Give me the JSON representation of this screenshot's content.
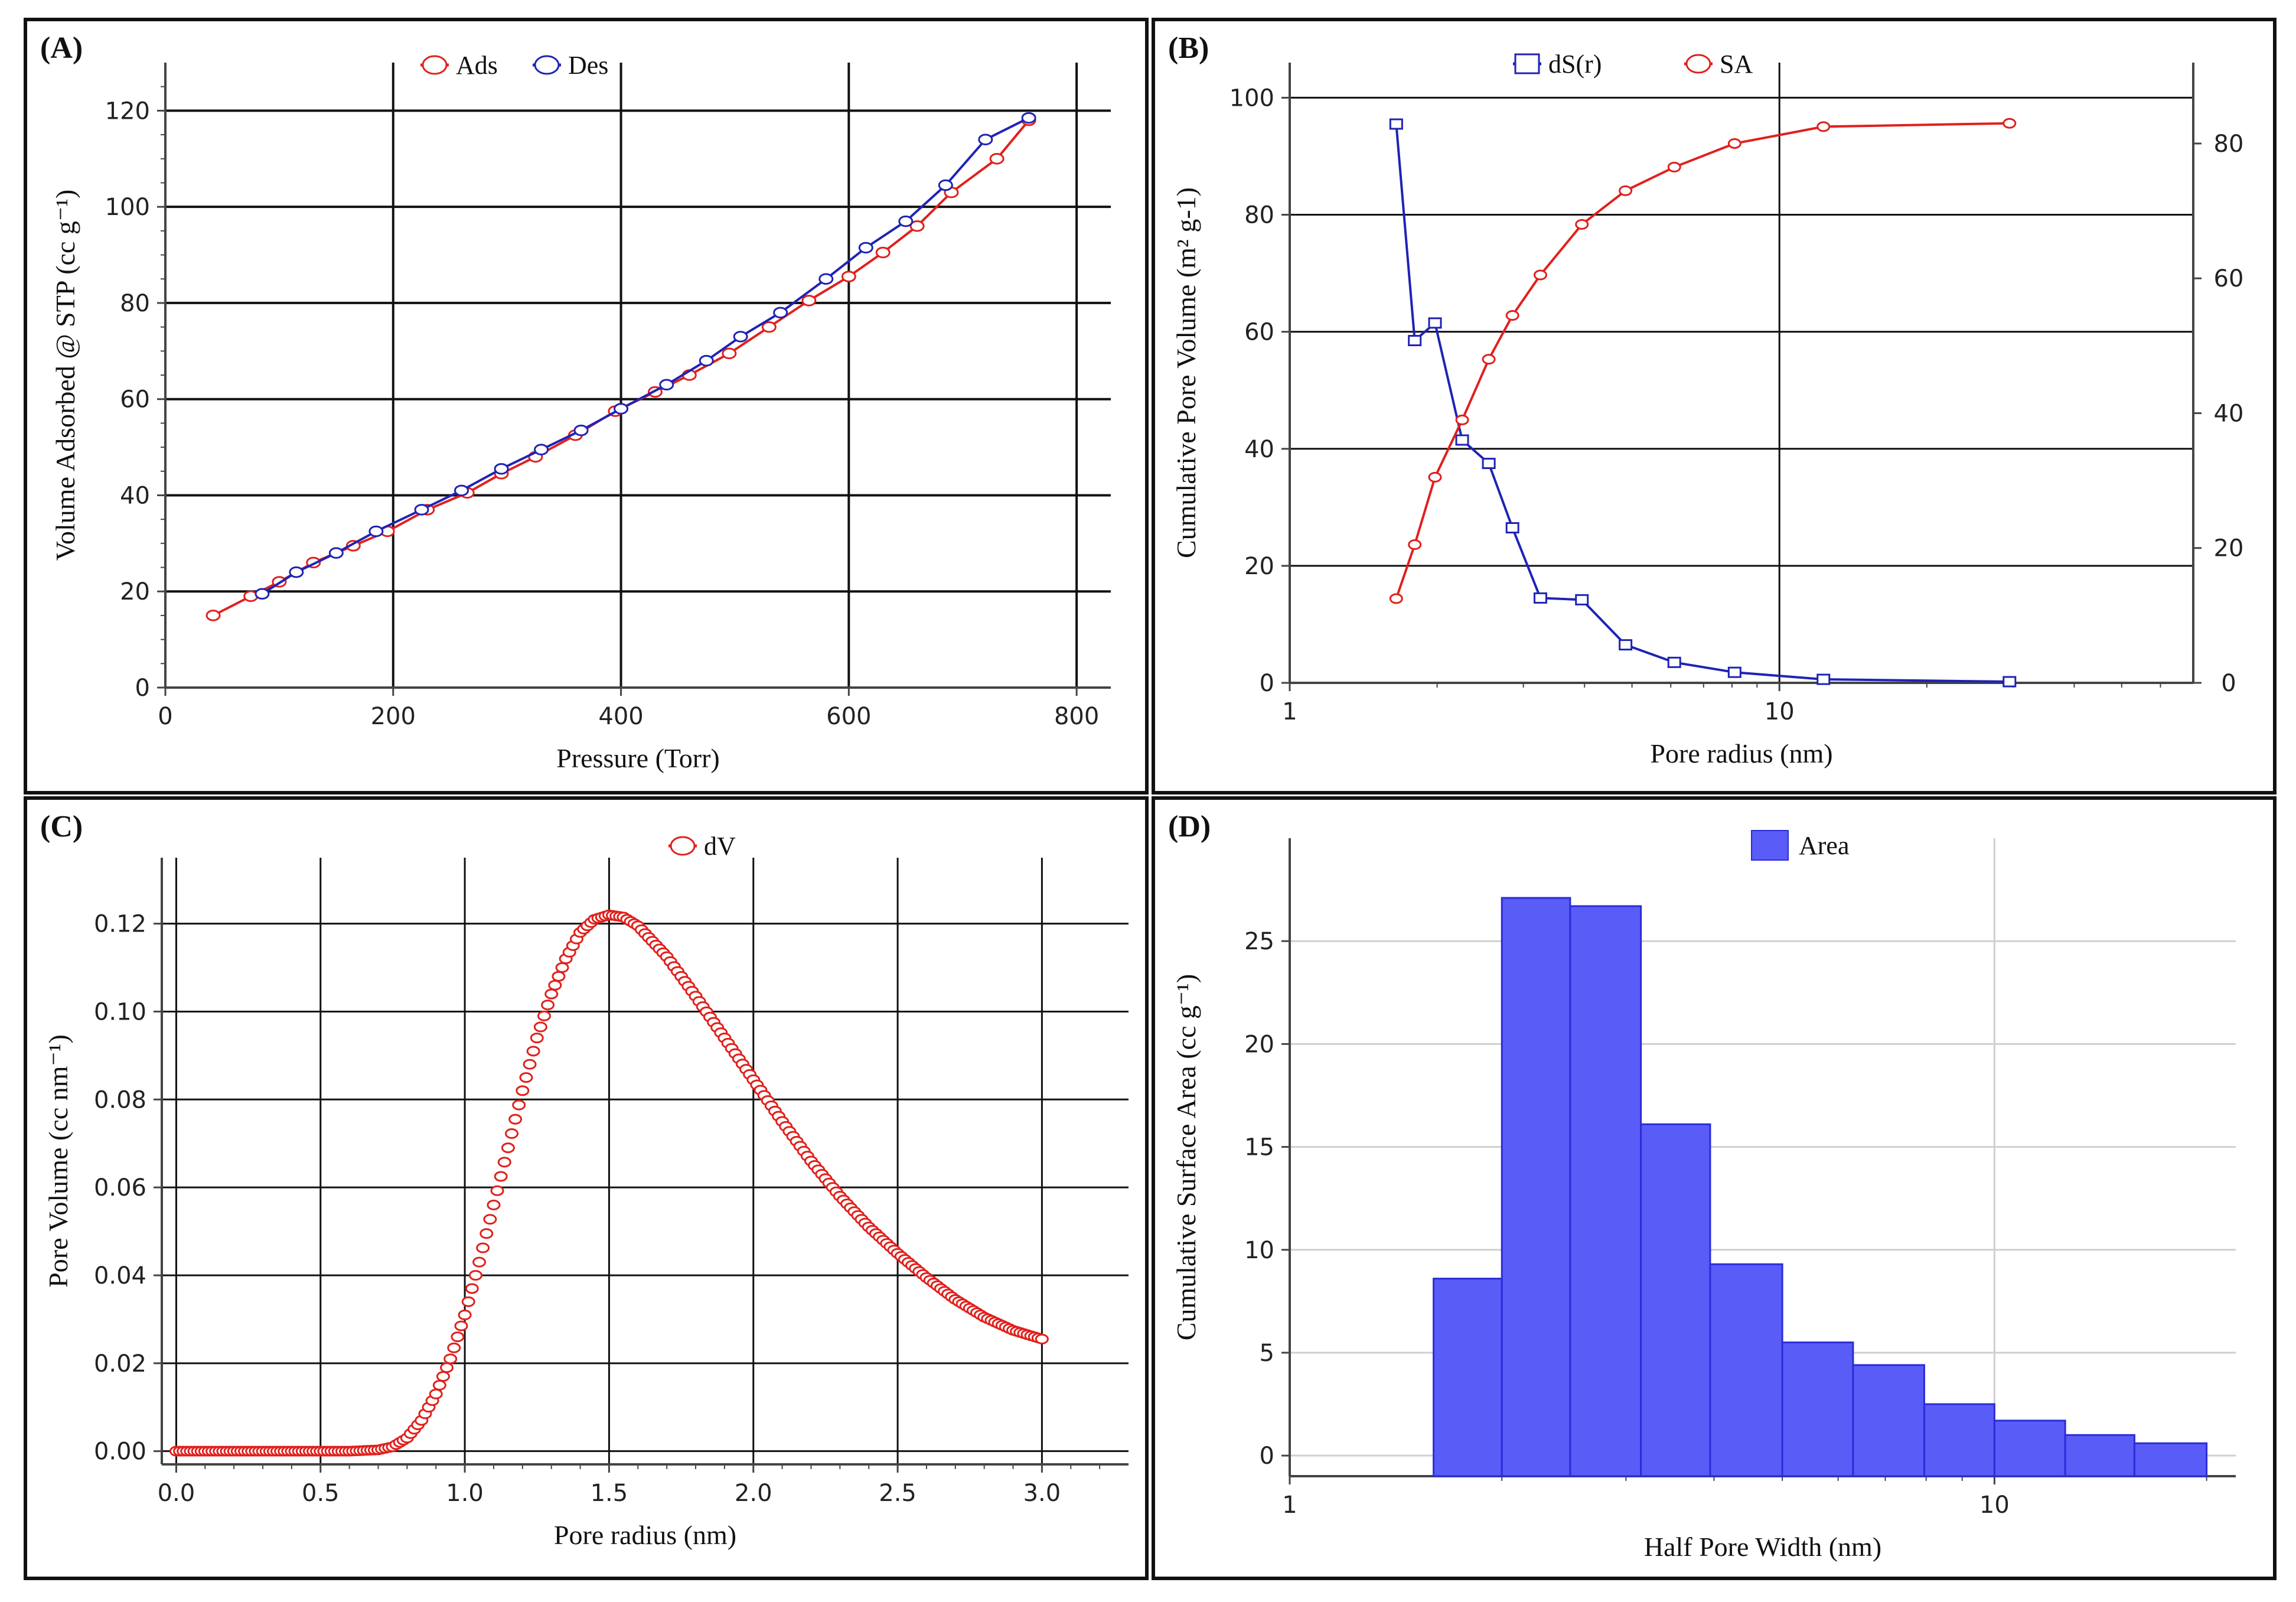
{
  "panels": {
    "a": {
      "label": "(A)",
      "chart_data": {
        "type": "line",
        "xlabel": "Pressure (Torr)",
        "ylabel": "Volume Adsorbed @ STP (cc g⁻¹)",
        "xlim": [
          0,
          830
        ],
        "ylim": [
          0,
          130
        ],
        "xticks": [
          0,
          200,
          400,
          600,
          800
        ],
        "yticks": [
          0,
          20,
          40,
          60,
          80,
          100,
          120
        ],
        "grid": true,
        "legend": "top-center",
        "series": [
          {
            "name": "Ads",
            "color": "#e0201c",
            "marker": "circle",
            "x": [
              42,
              75,
              100,
              130,
              165,
              195,
              230,
              265,
              295,
              325,
              360,
              395,
              430,
              460,
              495,
              530,
              565,
              600,
              630,
              660,
              690,
              730,
              758
            ],
            "y": [
              15,
              19,
              22,
              26,
              29.5,
              32.5,
              37,
              40.5,
              44.5,
              48,
              52.5,
              57.5,
              61.5,
              65,
              69.5,
              75,
              80.5,
              85.5,
              90.5,
              96,
              103,
              110,
              118
            ]
          },
          {
            "name": "Des",
            "color": "#1f23b5",
            "marker": "circle",
            "x": [
              85,
              115,
              150,
              185,
              225,
              260,
              295,
              330,
              365,
              400,
              440,
              475,
              505,
              540,
              580,
              615,
              650,
              685,
              720,
              758
            ],
            "y": [
              19.5,
              24,
              28,
              32.5,
              37,
              41,
              45.5,
              49.5,
              53.5,
              58,
              63,
              68,
              73,
              78,
              85,
              91.5,
              97,
              104.5,
              114,
              118.5
            ]
          }
        ]
      }
    },
    "b": {
      "label": "(B)",
      "chart_data": {
        "type": "line",
        "xlabel": "Pore radius (nm)",
        "ylabel": "Cumulative Pore Volume (m² g-1)",
        "xscale": "log",
        "xlim": [
          1,
          70
        ],
        "ylim": [
          0,
          106
        ],
        "y2lim": [
          0,
          92
        ],
        "xticks": [
          1,
          10
        ],
        "yticks": [
          0,
          20,
          40,
          60,
          80,
          100
        ],
        "y2ticks": [
          0,
          20,
          40,
          60,
          80
        ],
        "grid": true,
        "legend": "top-center",
        "series": [
          {
            "name": "dS(r)",
            "color": "#1f23b5",
            "marker": "square",
            "axis": "left",
            "x": [
              1.65,
              1.8,
              1.98,
              2.25,
              2.55,
              2.85,
              3.25,
              3.95,
              4.85,
              6.1,
              8.1,
              12.3,
              29.5
            ],
            "y": [
              95.5,
              58.5,
              61.5,
              41.5,
              37.5,
              26.5,
              14.5,
              14.2,
              6.5,
              3.5,
              1.8,
              0.6,
              0.2
            ]
          },
          {
            "name": "SA",
            "color": "#e0201c",
            "marker": "circle",
            "axis": "right",
            "x": [
              1.65,
              1.8,
              1.98,
              2.25,
              2.55,
              2.85,
              3.25,
              3.95,
              4.85,
              6.1,
              8.1,
              12.3,
              29.5
            ],
            "y": [
              12.5,
              20.5,
              30.5,
              39,
              48,
              54.5,
              60.5,
              68,
              73,
              76.5,
              80,
              82.5,
              83
            ]
          }
        ]
      }
    },
    "c": {
      "label": "(C)",
      "chart_data": {
        "type": "scatter",
        "xlabel": "Pore radius (nm)",
        "ylabel": "Pore Volume (cc nm⁻¹)",
        "xlim": [
          -0.05,
          3.3
        ],
        "ylim": [
          -0.003,
          0.135
        ],
        "xticks": [
          0.0,
          0.5,
          1.0,
          1.5,
          2.0,
          2.5,
          3.0
        ],
        "yticks": [
          0.0,
          0.02,
          0.04,
          0.06,
          0.08,
          0.1,
          0.12
        ],
        "grid": true,
        "legend": "top-center",
        "curve": "lognormal-like peak",
        "peak": {
          "x": 1.52,
          "y": 0.122
        },
        "series": [
          {
            "name": "dV",
            "color": "#e0201c",
            "marker": "circle",
            "x": [
              0.0,
              0.2,
              0.4,
              0.6,
              0.7,
              0.75,
              0.8,
              0.85,
              0.9,
              0.95,
              1.0,
              1.05,
              1.1,
              1.15,
              1.2,
              1.25,
              1.3,
              1.35,
              1.4,
              1.45,
              1.5,
              1.55,
              1.6,
              1.7,
              1.8,
              1.9,
              2.0,
              2.1,
              2.2,
              2.3,
              2.4,
              2.5,
              2.6,
              2.7,
              2.8,
              2.9,
              3.0
            ],
            "y": [
              0.0,
              0.0,
              0.0,
              0.0,
              0.0003,
              0.001,
              0.003,
              0.007,
              0.013,
              0.021,
              0.031,
              0.043,
              0.056,
              0.069,
              0.082,
              0.094,
              0.104,
              0.112,
              0.118,
              0.121,
              0.122,
              0.1215,
              0.1195,
              0.1125,
              0.1035,
              0.094,
              0.0845,
              0.075,
              0.066,
              0.058,
              0.051,
              0.045,
              0.0395,
              0.0345,
              0.0305,
              0.0275,
              0.0255
            ]
          }
        ]
      }
    },
    "d": {
      "label": "(D)",
      "chart_data": {
        "type": "bar",
        "xlabel": "Half Pore Width (nm)",
        "ylabel": "Cumulative Surface Area (cc g⁻¹)",
        "xscale": "log",
        "xlim": [
          1,
          22
        ],
        "ylim": [
          -1,
          30
        ],
        "xticks": [
          1,
          10
        ],
        "yticks": [
          0,
          5,
          10,
          15,
          20,
          25
        ],
        "grid": true,
        "legend": "top-center",
        "color": "#5a5cf7",
        "bins": [
          {
            "from": 1.6,
            "to": 2.0,
            "value": 8.6
          },
          {
            "from": 2.0,
            "to": 2.5,
            "value": 27.1
          },
          {
            "from": 2.5,
            "to": 3.15,
            "value": 26.7
          },
          {
            "from": 3.15,
            "to": 3.95,
            "value": 16.1
          },
          {
            "from": 3.95,
            "to": 5.0,
            "value": 9.3
          },
          {
            "from": 5.0,
            "to": 6.3,
            "value": 5.5
          },
          {
            "from": 6.3,
            "to": 7.95,
            "value": 4.4
          },
          {
            "from": 7.95,
            "to": 10.0,
            "value": 2.5
          },
          {
            "from": 10.0,
            "to": 12.6,
            "value": 1.7
          },
          {
            "from": 12.6,
            "to": 15.8,
            "value": 1.0
          },
          {
            "from": 15.8,
            "to": 20.0,
            "value": 0.6
          }
        ],
        "series": [
          {
            "name": "Area"
          }
        ]
      }
    }
  }
}
